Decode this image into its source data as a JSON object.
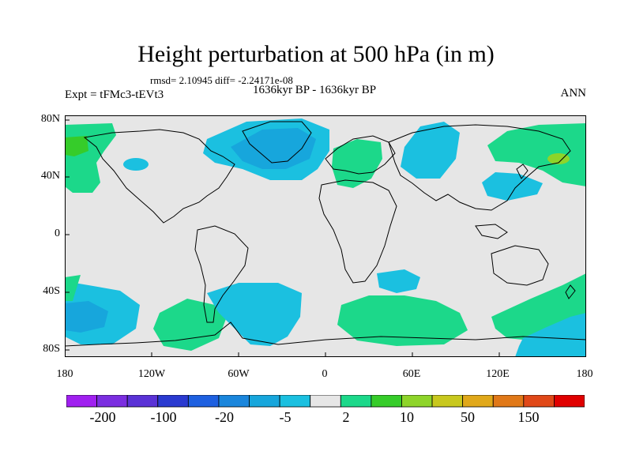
{
  "title": "Height perturbation at 500 hPa (in m)",
  "stats": "rmsd= 2.10945 diff= -2.24171e-08",
  "period": "1636kyr BP - 1636kyr BP",
  "experiment": "Expt = tFMc3-tEVt3",
  "season": "ANN",
  "lat_ticks": [
    "80N",
    "40N",
    "0",
    "40S",
    "80S"
  ],
  "lon_ticks": [
    "180",
    "120W",
    "60W",
    "0",
    "60E",
    "120E",
    "180"
  ],
  "colorbar": {
    "colors": [
      "#a020f0",
      "#7b2ee0",
      "#5a32d6",
      "#2a3ad0",
      "#1e60e0",
      "#1a86dc",
      "#17a6dc",
      "#1bc0e0",
      "#e6e6e6",
      "#1cd88a",
      "#36cc2a",
      "#8ed42a",
      "#c8c81e",
      "#e0a81a",
      "#e07818",
      "#e04818",
      "#e00000"
    ],
    "labels": [
      "-200",
      "-100",
      "-20",
      "-5",
      "2",
      "10",
      "50",
      "150"
    ],
    "background": "#e6e6e6"
  }
}
